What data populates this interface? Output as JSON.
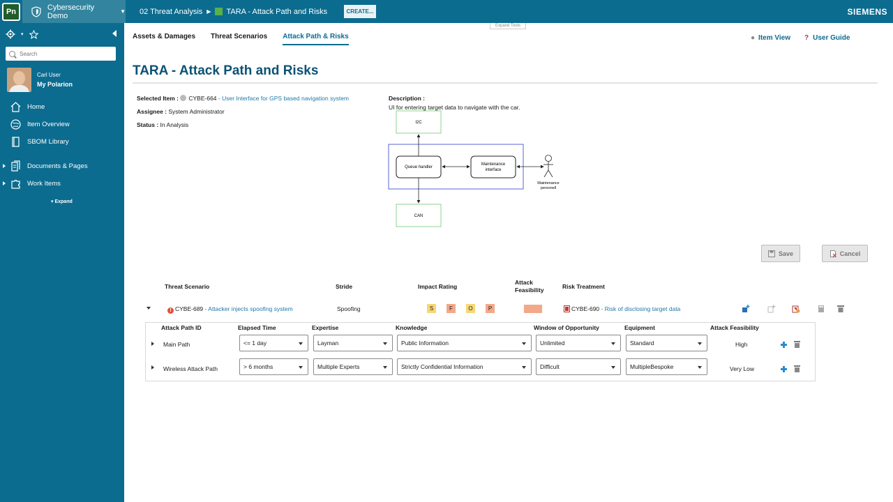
{
  "topbar": {
    "logo": "Pn",
    "project": "Cybersecurity Demo",
    "crumb_space": "02 Threat Analysis",
    "crumb_doc": "TARA - Attack Path and Risks",
    "create_label": "CREATE...",
    "brand": "SIEMENS",
    "expand_tools": "Expand Tools"
  },
  "sidebar": {
    "search_placeholder": "Search",
    "user_name": "Carl User",
    "user_link": "My Polarion",
    "items": [
      {
        "label": "Home"
      },
      {
        "label": "Item Overview"
      },
      {
        "label": "SBOM Library"
      },
      {
        "label": "Documents & Pages"
      },
      {
        "label": "Work Items"
      }
    ],
    "expand_label": "Expand"
  },
  "tabs": [
    {
      "label": "Assets & Damages"
    },
    {
      "label": "Threat Scenarios"
    },
    {
      "label": "Attack Path & Risks"
    }
  ],
  "right_links": {
    "item_view": "Item View",
    "user_guide": "User Guide"
  },
  "page_title": "TARA - Attack Path and Risks",
  "item": {
    "selected_label": "Selected Item :",
    "selected_id": "CYBE-664",
    "selected_title": "- User Interface for GPS based navigation system",
    "assignee_label": "Assignee :",
    "assignee": "System Administrator",
    "status_label": "Status :",
    "status": "In Analysis",
    "description_label": "Description :",
    "description": "UI for entering target data to navigate with the car."
  },
  "diagram": {
    "i2c": "I2C",
    "queue": "Queue handler",
    "maint_line1": "Maintenance",
    "maint_line2": "interface",
    "can": "CAN",
    "actor_line1": "Maintenance",
    "actor_line2": "personell"
  },
  "buttons": {
    "save": "Save",
    "cancel": "Cancel"
  },
  "threat_table": {
    "headers": {
      "scenario": "Threat Scenario",
      "stride": "Stride",
      "impact": "Impact Rating",
      "feasibility_line1": "Attack",
      "feasibility_line2": "Feasibility",
      "treatment": "Risk Treatment"
    },
    "row": {
      "id": "CYBE-689",
      "title": "- Attacker injects spoofing system",
      "stride": "Spoofing",
      "ratings": [
        {
          "letter": "S",
          "color": "#f7d774"
        },
        {
          "letter": "F",
          "color": "#f3a88a"
        },
        {
          "letter": "O",
          "color": "#f7d774"
        },
        {
          "letter": "P",
          "color": "#f3a88a"
        }
      ],
      "feasibility_color": "#f3a88a",
      "treatment_id": "CYBE-690",
      "treatment_title": "- Risk of disclosing target data"
    }
  },
  "paths": {
    "headers": {
      "id": "Attack Path ID",
      "elapsed": "Elapsed Time",
      "expertise": "Expertise",
      "knowledge": "Knowledge",
      "window": "Window of Opportunity",
      "equipment": "Equipment",
      "feasibility": "Attack Feasibility"
    },
    "rows": [
      {
        "name": "Main Path",
        "elapsed": "<= 1 day",
        "expertise": "Layman",
        "knowledge": "Public Information",
        "window": "Unlimited",
        "equipment": "Standard",
        "feasibility": "High"
      },
      {
        "name": "Wireless Attack Path",
        "elapsed": "> 6 months",
        "expertise": "Multiple Experts",
        "knowledge": "Strictly Confidential Information",
        "window": "Difficult",
        "equipment": "MultipleBespoke",
        "feasibility": "Very Low"
      }
    ]
  }
}
